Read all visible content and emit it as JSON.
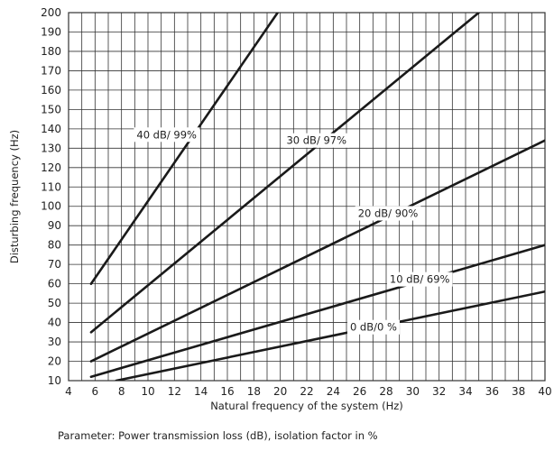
{
  "chart_data": {
    "type": "line",
    "title": "",
    "xlabel": "Natural frequency of the system (Hz)",
    "ylabel": "Disturbing frequency (Hz)",
    "xlim": [
      4,
      40
    ],
    "ylim": [
      10,
      200
    ],
    "xticks": [
      4,
      6,
      8,
      10,
      12,
      14,
      16,
      18,
      20,
      22,
      24,
      26,
      28,
      30,
      32,
      34,
      36,
      38,
      40
    ],
    "yticks": [
      10,
      20,
      30,
      40,
      50,
      60,
      70,
      80,
      90,
      100,
      110,
      120,
      130,
      140,
      150,
      160,
      170,
      180,
      190,
      200
    ],
    "x_minor_step": 1,
    "y_minor_step": 10,
    "grid": true,
    "line_color": "#1a1a1a",
    "grid_color": "#333333",
    "series": [
      {
        "name": "40 dB/ 99%",
        "x": [
          5.7,
          19.8
        ],
        "y": [
          60,
          200
        ]
      },
      {
        "name": "30 dB/ 97%",
        "x": [
          5.7,
          35.0
        ],
        "y": [
          35,
          200
        ]
      },
      {
        "name": "20 dB/ 90%",
        "x": [
          5.7,
          40.0
        ],
        "y": [
          20,
          134
        ]
      },
      {
        "name": "10 dB/ 69%",
        "x": [
          5.7,
          40.0
        ],
        "y": [
          12,
          80
        ]
      },
      {
        "name": "0 dB/0 %",
        "x": [
          7.6,
          40.0
        ],
        "y": [
          10,
          56
        ]
      }
    ]
  },
  "footnote": "Parameter: Power transmission loss (dB), isolation factor in %"
}
